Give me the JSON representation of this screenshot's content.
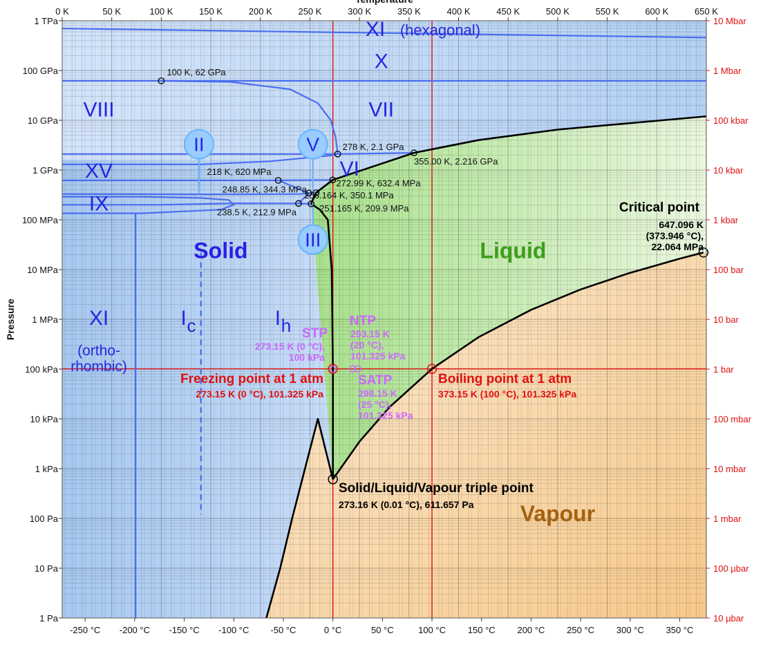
{
  "chart_data": {
    "type": "area",
    "title": "",
    "xlabel_top": "Temperature",
    "ylabel": "Pressure",
    "x_top_ticks": [
      "0 K",
      "50 K",
      "100 K",
      "150 K",
      "200 K",
      "250 K",
      "300 K",
      "350 K",
      "400 K",
      "450 K",
      "500 K",
      "550 K",
      "600 K",
      "650 K"
    ],
    "x_bottom_ticks": [
      "-250 °C",
      "-200 °C",
      "-150 °C",
      "-100 °C",
      "-50 °C",
      "0 °C",
      "50 °C",
      "100 °C",
      "150 °C",
      "200 °C",
      "250 °C",
      "300 °C",
      "350 °C"
    ],
    "y_left_ticks": [
      "1 Pa",
      "10 Pa",
      "100 Pa",
      "1 kPa",
      "10 kPa",
      "100 kPa",
      "1 MPa",
      "10 MPa",
      "100 MPa",
      "1 GPa",
      "10 GPa",
      "100 GPa",
      "1 TPa"
    ],
    "y_right_ticks": [
      "10 µbar",
      "100 µbar",
      "1 mbar",
      "10 mbar",
      "100 mbar",
      "1 bar",
      "10 bar",
      "100 bar",
      "1 kbar",
      "10 kbar",
      "100 kbar",
      "1 Mbar",
      "10 Mbar"
    ],
    "xlim_K": [
      0,
      650
    ],
    "ylim_Pa": [
      1,
      1000000000000.0
    ],
    "yscale": "log",
    "grid": true,
    "colors": {
      "solid": "#a9ccf2",
      "liquid": "#b3e6a3",
      "vapour": "#f7cf9a",
      "boundary": "#000000",
      "ice_lines": "#4a6ef0",
      "reference_lines": "#e01010",
      "standard_points": "#cc66ff"
    },
    "phase_regions": [
      {
        "name": "Solid",
        "x_K": 160,
        "y_Pa": 25000000.0
      },
      {
        "name": "Liquid",
        "x_K": 455,
        "y_Pa": 25000000.0
      },
      {
        "name": "Vapour",
        "x_K": 500,
        "y_Pa": 130
      }
    ],
    "ice_labels": [
      {
        "name": "XI",
        "suffix": "(hexagonal)",
        "x_K": 320,
        "y_Pa": 700000000000.0
      },
      {
        "name": "X",
        "x_K": 322,
        "y_Pa": 160000000000.0
      },
      {
        "name": "VIII",
        "x_K": 37,
        "y_Pa": 17000000000.0
      },
      {
        "name": "VII",
        "x_K": 322,
        "y_Pa": 17000000000.0
      },
      {
        "name": "VI",
        "x_K": 290,
        "y_Pa": 1100000000.0
      },
      {
        "name": "XV",
        "x_K": 37,
        "y_Pa": 1000000000.0
      },
      {
        "name": "IX",
        "x_K": 37,
        "y_Pa": 220000000.0
      },
      {
        "name": "XI",
        "sub": "(ortho-\nrhombic)",
        "x_K": 37,
        "y_Pa": 1100000.0
      },
      {
        "name": "I",
        "sub_letter": "c",
        "x_K": 128,
        "y_Pa": 1100000.0
      },
      {
        "name": "I",
        "sub_letter": "h",
        "x_K": 223,
        "y_Pa": 1100000.0
      }
    ],
    "circled_ices": [
      {
        "name": "II",
        "x_K": 138,
        "y_Pa": 3300000000.0
      },
      {
        "name": "V",
        "x_K": 253,
        "y_Pa": 3300000000.0
      },
      {
        "name": "III",
        "x_K": 253,
        "y_Pa": 40000000.0
      }
    ],
    "points": [
      {
        "label": "100 K, 62 GPa",
        "T_K": 100,
        "P_Pa": 62000000000.0
      },
      {
        "label": "278 K, 2.1 GPa",
        "T_K": 278,
        "P_Pa": 2100000000.0
      },
      {
        "label": "355.00 K, 2.216 GPa",
        "T_K": 355.0,
        "P_Pa": 2216000000.0
      },
      {
        "label": "218 K, 620 MPa",
        "T_K": 218,
        "P_Pa": 620000000.0
      },
      {
        "label": "272.99 K, 632.4 MPa",
        "T_K": 272.99,
        "P_Pa": 632400000.0
      },
      {
        "label": "248.85 K, 344.3 MPa",
        "T_K": 248.85,
        "P_Pa": 344300000.0
      },
      {
        "label": "256.164 K, 350.1 MPa",
        "T_K": 256.164,
        "P_Pa": 350100000.0
      },
      {
        "label": "238.5 K, 212.9 MPa",
        "T_K": 238.5,
        "P_Pa": 212900000.0
      },
      {
        "label": "251.165 K, 209.9 MPa",
        "T_K": 251.165,
        "P_Pa": 209900000.0
      }
    ],
    "critical_point": {
      "title": "Critical point",
      "label": "647.096 K\n(373.946 °C),\n22.064 MPa",
      "T_K": 647.096,
      "P_Pa": 22064000.0
    },
    "triple_point": {
      "title": "Solid/Liquid/Vapour triple point",
      "label": "273.16 K (0.01 °C), 611.657 Pa",
      "T_K": 273.16,
      "P_Pa": 611.657
    },
    "freezing_point": {
      "title": "Freezing point at 1 atm",
      "label": "273.15 K (0 °C), 101.325 kPa",
      "T_K": 273.15,
      "P_Pa": 101325
    },
    "boiling_point": {
      "title": "Boiling point at 1 atm",
      "label": "373.15 K (100 °C), 101.325 kPa",
      "T_K": 373.15,
      "P_Pa": 101325
    },
    "standard_points": [
      {
        "title": "STP",
        "label": "273.15 K (0 °C),\n100 kPa",
        "T_K": 273.15,
        "P_Pa": 100000
      },
      {
        "title": "NTP",
        "label": "293.15 K\n(20 °C),\n101.325 kPa",
        "T_K": 293.15,
        "P_Pa": 101325
      },
      {
        "title": "SATP",
        "label": "298.15 K\n(25 °C),\n101.325 kPa",
        "T_K": 298.15,
        "P_Pa": 101325
      }
    ],
    "boundaries": {
      "sublimation": [
        [
          206,
          1
        ],
        [
          220,
          10
        ],
        [
          232,
          100
        ],
        [
          245,
          1000
        ],
        [
          258,
          10000
        ],
        [
          273.16,
          611.657
        ]
      ],
      "vaporization": [
        [
          273.16,
          611.657
        ],
        [
          300,
          3500
        ],
        [
          330,
          17000
        ],
        [
          373.15,
          101325
        ],
        [
          420,
          437000
        ],
        [
          473,
          1550000.0
        ],
        [
          523,
          3980000.0
        ],
        [
          573,
          8600000.0
        ],
        [
          623,
          16500000.0
        ],
        [
          647.096,
          22064000.0
        ]
      ],
      "melting_Ih": [
        [
          273.16,
          611.657
        ],
        [
          273.15,
          101325
        ],
        [
          272,
          10000000.0
        ],
        [
          268,
          100000000.0
        ],
        [
          260,
          160000000.0
        ],
        [
          251.165,
          209900000.0
        ]
      ],
      "melting_high": [
        [
          251.165,
          209900000.0
        ],
        [
          256.164,
          350100000.0
        ],
        [
          272.99,
          632400000.0
        ],
        [
          355.0,
          2216000000.0
        ],
        [
          420,
          4000000000.0
        ],
        [
          500,
          6500000000.0
        ],
        [
          650,
          12000000000.0
        ]
      ]
    }
  }
}
